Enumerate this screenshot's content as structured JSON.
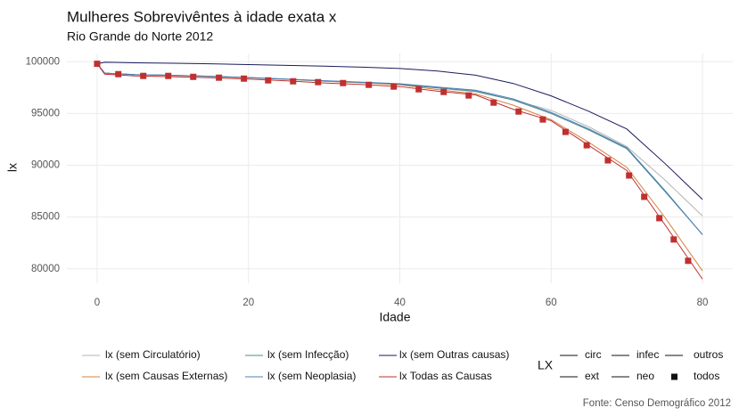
{
  "chart_data": {
    "type": "line",
    "title": "Mulheres Sobrevivêntes à idade exata x",
    "subtitle": "Rio Grande do Norte 2012",
    "x_label": "Idade",
    "y_label": "lx",
    "x": [
      0,
      1,
      5,
      10,
      15,
      20,
      25,
      30,
      35,
      40,
      45,
      50,
      55,
      60,
      65,
      70,
      75,
      80
    ],
    "series": [
      {
        "name": "lx (sem Circulatório)",
        "color": "#b5b5b5",
        "values": [
          99800,
          98900,
          98750,
          98680,
          98580,
          98460,
          98300,
          98120,
          97980,
          97800,
          97450,
          97100,
          96300,
          95300,
          93700,
          91800,
          88600,
          85100
        ]
      },
      {
        "name": "lx (sem Causas Externas)",
        "color": "#d2803f",
        "values": [
          99800,
          98900,
          98750,
          98670,
          98570,
          98460,
          98300,
          98120,
          97970,
          97780,
          97300,
          96900,
          95800,
          94400,
          92200,
          89800,
          85000,
          79800
        ]
      },
      {
        "name": "lx (sem Infecção)",
        "color": "#4d8a8a",
        "values": [
          99800,
          98900,
          98760,
          98690,
          98590,
          98470,
          98320,
          98150,
          98000,
          97830,
          97480,
          97150,
          96300,
          95000,
          93400,
          91600,
          87500,
          83300
        ]
      },
      {
        "name": "lx (sem Neoplasia)",
        "color": "#4a7fb8",
        "values": [
          99800,
          98900,
          98760,
          98690,
          98590,
          98480,
          98330,
          98170,
          98030,
          97870,
          97550,
          97250,
          96400,
          95100,
          93500,
          91700,
          87600,
          83300
        ]
      },
      {
        "name": "lx (sem Outras causas)",
        "color": "#1a1a5e",
        "values": [
          99800,
          99950,
          99900,
          99850,
          99800,
          99720,
          99650,
          99570,
          99480,
          99350,
          99100,
          98700,
          97900,
          96700,
          95200,
          93500,
          90200,
          86700
        ]
      },
      {
        "name": "lx Todas as Causas",
        "color": "#c03030",
        "values": [
          99800,
          98800,
          98630,
          98550,
          98450,
          98330,
          98150,
          97950,
          97800,
          97600,
          97150,
          96800,
          95400,
          94300,
          91900,
          89500,
          84300,
          79000
        ]
      }
    ],
    "points": {
      "color": "#c03030",
      "x": [
        0,
        2.8,
        6.1,
        9.4,
        12.7,
        16.1,
        19.4,
        22.6,
        25.9,
        29.2,
        32.5,
        35.9,
        39.2,
        42.5,
        45.8,
        49.1,
        52.4,
        55.7,
        58.9,
        61.9,
        64.7,
        67.5,
        70.3,
        72.3,
        74.3,
        76.2,
        78.1
      ],
      "values": [
        99800,
        98800,
        98630,
        98630,
        98540,
        98460,
        98370,
        98200,
        98110,
        98030,
        97940,
        97770,
        97600,
        97340,
        97080,
        96740,
        96050,
        95190,
        94420,
        93220,
        91930,
        90470,
        89010,
        86950,
        84890,
        82830,
        80770
      ]
    },
    "xlim": [
      -4,
      84
    ],
    "ylim": [
      78600,
      100800
    ],
    "xticks": [
      0,
      20,
      40,
      60,
      80
    ],
    "yticks": [
      80000,
      85000,
      90000,
      95000,
      100000
    ],
    "grid": true,
    "linetype_legend": {
      "title": "LX",
      "labels": [
        "circ",
        "infec",
        "outros",
        "ext",
        "neo",
        "todos"
      ]
    },
    "caption": "Fonte: Censo Demográfico 2012"
  }
}
